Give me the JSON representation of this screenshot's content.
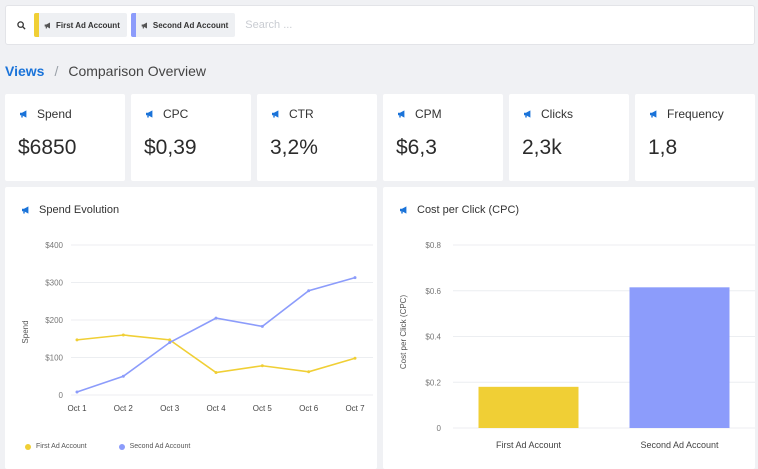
{
  "search": {
    "placeholder": "Search ...",
    "chips": [
      {
        "label": "First Ad Account",
        "color": "#f0cf35"
      },
      {
        "label": "Second Ad Account",
        "color": "#8c9cfb"
      }
    ]
  },
  "breadcrumb": {
    "root": "Views",
    "separator": "/",
    "current": "Comparison Overview"
  },
  "kpis": [
    {
      "label": "Spend",
      "value": "$6850"
    },
    {
      "label": "CPC",
      "value": "$0,39"
    },
    {
      "label": "CTR",
      "value": "3,2%"
    },
    {
      "label": "CPM",
      "value": "$6,3"
    },
    {
      "label": "Clicks",
      "value": "2,3k"
    },
    {
      "label": "Frequency",
      "value": "1,8"
    }
  ],
  "colors": {
    "accent": "#1a73d9",
    "first_account": "#f0cf35",
    "second_account": "#8c9cfb"
  },
  "chart_data": [
    {
      "type": "line",
      "title": "Spend Evolution",
      "xlabel": "",
      "ylabel": "Spend",
      "categories": [
        "Oct 1",
        "Oct 2",
        "Oct 3",
        "Oct 4",
        "Oct 5",
        "Oct 6",
        "Oct 7"
      ],
      "yticks": [
        "0",
        "$100",
        "$200",
        "$300",
        "$400"
      ],
      "ylim": [
        0,
        400
      ],
      "series": [
        {
          "name": "First Ad Account",
          "values": [
            147,
            160,
            147,
            60,
            78,
            62,
            98
          ]
        },
        {
          "name": "Second Ad Account",
          "values": [
            8,
            50,
            140,
            205,
            183,
            278,
            313
          ]
        }
      ],
      "legend": "bottom-left",
      "grid": true
    },
    {
      "type": "bar",
      "title": "Cost per Click (CPC)",
      "xlabel": "",
      "ylabel": "Cost per Click (CPC)",
      "categories": [
        "First Ad Account",
        "Second Ad Account"
      ],
      "values": [
        0.18,
        0.615
      ],
      "yticks": [
        "0",
        "$0.2",
        "$0.4",
        "$0.6",
        "$0.8"
      ],
      "ylim": [
        0,
        0.8
      ],
      "grid": true
    }
  ]
}
